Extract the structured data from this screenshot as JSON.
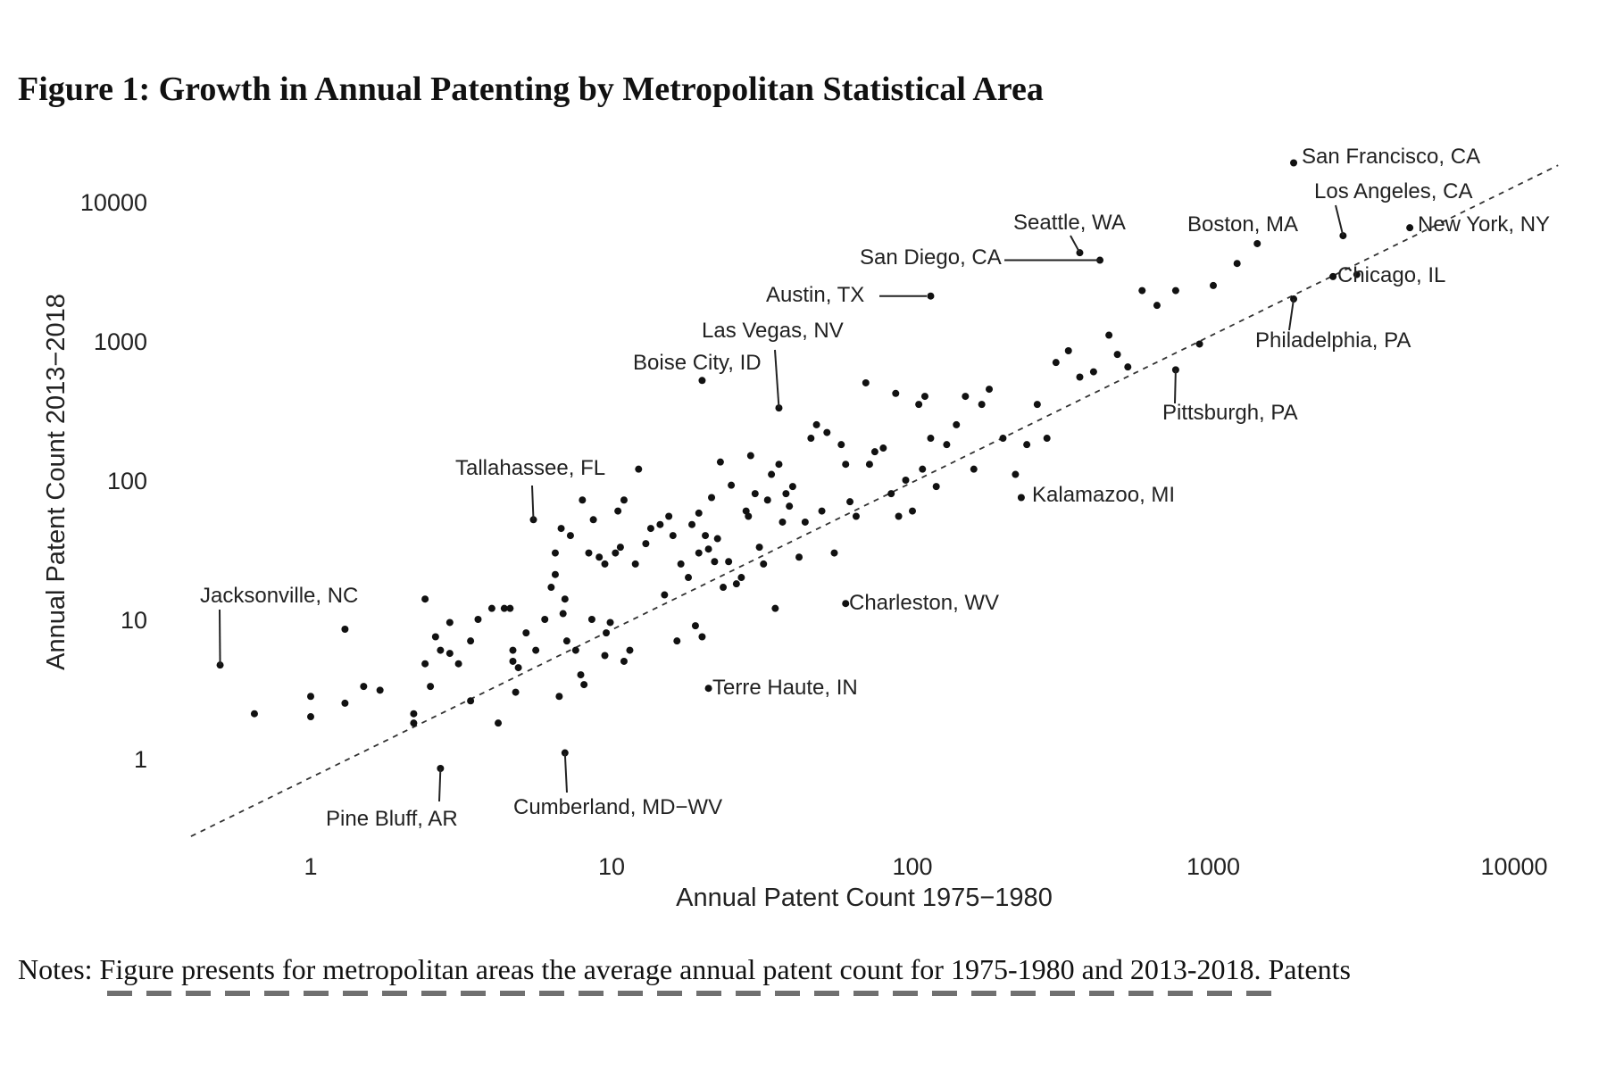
{
  "figure": {
    "title": "Figure 1: Growth in Annual Patenting by Metropolitan Statistical Area",
    "notes": "Notes: Figure presents for metropolitan areas the average annual patent count for 1975-1980 and 2013-2018. Patents"
  },
  "chart_data": {
    "type": "scatter",
    "xlabel": "Annual Patent Count 1975−1980",
    "ylabel": "Annual Patent Count 2013−2018",
    "xscale": "log",
    "yscale": "log",
    "xlim": [
      0.4,
      14000
    ],
    "ylim": [
      0.35,
      15000
    ],
    "xticks": [
      1,
      10,
      100,
      1000,
      10000
    ],
    "xtick_labels": [
      "1",
      "10",
      "100",
      "1000",
      "10000"
    ],
    "yticks": [
      1,
      10,
      100,
      1000,
      10000
    ],
    "ytick_labels": [
      "1",
      "10",
      "100",
      "1000",
      "10000"
    ],
    "grid": false,
    "reference_line": "45-degree dashed line",
    "labeled_points": [
      {
        "label": "San Francisco, CA",
        "x": 1850,
        "y": 19000
      },
      {
        "label": "Los Angeles, CA",
        "x": 2700,
        "y": 5700
      },
      {
        "label": "New York, NY",
        "x": 4500,
        "y": 6500
      },
      {
        "label": "Boston, MA",
        "x": 1400,
        "y": 5000
      },
      {
        "label": "Seattle, WA",
        "x": 360,
        "y": 4300
      },
      {
        "label": "San Diego, CA",
        "x": 420,
        "y": 3800
      },
      {
        "label": "Chicago, IL",
        "x": 2500,
        "y": 2900
      },
      {
        "label": "Austin, TX",
        "x": 115,
        "y": 2100
      },
      {
        "label": "Philadelphia, PA",
        "x": 1850,
        "y": 2000
      },
      {
        "label": "Las Vegas, NV",
        "x": 36,
        "y": 330
      },
      {
        "label": "Boise City, ID",
        "x": 20,
        "y": 520
      },
      {
        "label": "Pittsburgh, PA",
        "x": 750,
        "y": 620
      },
      {
        "label": "Tallahassee, FL",
        "x": 5.5,
        "y": 52
      },
      {
        "label": "Kalamazoo, MI",
        "x": 230,
        "y": 75
      },
      {
        "label": "Jacksonville, NC",
        "x": 0.5,
        "y": 4.7
      },
      {
        "label": "Charleston, WV",
        "x": 60,
        "y": 13
      },
      {
        "label": "Terre Haute, IN",
        "x": 21,
        "y": 3.2
      },
      {
        "label": "Pine Bluff, AR",
        "x": 2.7,
        "y": 0.85
      },
      {
        "label": "Cumberland, MD−WV",
        "x": 7,
        "y": 1.1
      }
    ],
    "points": [
      [
        0.65,
        2.1
      ],
      [
        1,
        2.8
      ],
      [
        1,
        2.0
      ],
      [
        1.3,
        2.5
      ],
      [
        1.3,
        8.5
      ],
      [
        1.5,
        3.3
      ],
      [
        1.7,
        3.1
      ],
      [
        2.2,
        2.1
      ],
      [
        2.2,
        1.8
      ],
      [
        2.4,
        14
      ],
      [
        2.4,
        4.8
      ],
      [
        2.5,
        3.3
      ],
      [
        2.6,
        7.5
      ],
      [
        2.7,
        6
      ],
      [
        2.9,
        9.5
      ],
      [
        2.9,
        5.7
      ],
      [
        3.1,
        4.8
      ],
      [
        3.4,
        7
      ],
      [
        3.6,
        10
      ],
      [
        3.4,
        2.6
      ],
      [
        4,
        12
      ],
      [
        4.2,
        1.8
      ],
      [
        4.4,
        12
      ],
      [
        4.6,
        12
      ],
      [
        4.7,
        6
      ],
      [
        4.7,
        5
      ],
      [
        4.8,
        3
      ],
      [
        4.9,
        4.5
      ],
      [
        5.2,
        8
      ],
      [
        5.6,
        6
      ],
      [
        6,
        10
      ],
      [
        6.3,
        17
      ],
      [
        6.5,
        21
      ],
      [
        6.5,
        30
      ],
      [
        6.8,
        45
      ],
      [
        6.7,
        2.8
      ],
      [
        6.9,
        11
      ],
      [
        7,
        14
      ],
      [
        7.1,
        7
      ],
      [
        7.3,
        40
      ],
      [
        7.6,
        6
      ],
      [
        7.9,
        4
      ],
      [
        8,
        72
      ],
      [
        8.1,
        3.4
      ],
      [
        8.4,
        30
      ],
      [
        8.6,
        10
      ],
      [
        8.7,
        52
      ],
      [
        9.1,
        28
      ],
      [
        9.5,
        25
      ],
      [
        9.6,
        8
      ],
      [
        9.5,
        5.5
      ],
      [
        9.9,
        9.5
      ],
      [
        10.3,
        30
      ],
      [
        10.5,
        60
      ],
      [
        10.7,
        33
      ],
      [
        11,
        5
      ],
      [
        11,
        72
      ],
      [
        11.5,
        6
      ],
      [
        12,
        25
      ],
      [
        12.3,
        120
      ],
      [
        13,
        35
      ],
      [
        13.5,
        45
      ],
      [
        14.5,
        48
      ],
      [
        15,
        15
      ],
      [
        15.5,
        55
      ],
      [
        16,
        40
      ],
      [
        16.5,
        7
      ],
      [
        17,
        25
      ],
      [
        18,
        20
      ],
      [
        18.5,
        48
      ],
      [
        19,
        9
      ],
      [
        19.5,
        30
      ],
      [
        19.5,
        58
      ],
      [
        20,
        7.5
      ],
      [
        20.5,
        40
      ],
      [
        21,
        32
      ],
      [
        21.5,
        75
      ],
      [
        22,
        26
      ],
      [
        22.5,
        38
      ],
      [
        23,
        135
      ],
      [
        23.5,
        17
      ],
      [
        24.5,
        26
      ],
      [
        25,
        92
      ],
      [
        26,
        18
      ],
      [
        27,
        20
      ],
      [
        28,
        60
      ],
      [
        28.5,
        55
      ],
      [
        29,
        150
      ],
      [
        30,
        80
      ],
      [
        31,
        33
      ],
      [
        32,
        25
      ],
      [
        33,
        72
      ],
      [
        34,
        110
      ],
      [
        35,
        12
      ],
      [
        36,
        130
      ],
      [
        37,
        50
      ],
      [
        38,
        80
      ],
      [
        39,
        65
      ],
      [
        40,
        90
      ],
      [
        42,
        28
      ],
      [
        44,
        50
      ],
      [
        46,
        200
      ],
      [
        48,
        250
      ],
      [
        50,
        60
      ],
      [
        52,
        220
      ],
      [
        55,
        30
      ],
      [
        58,
        180
      ],
      [
        60,
        130
      ],
      [
        62,
        70
      ],
      [
        65,
        55
      ],
      [
        70,
        500
      ],
      [
        72,
        130
      ],
      [
        75,
        160
      ],
      [
        80,
        170
      ],
      [
        85,
        80
      ],
      [
        88,
        420
      ],
      [
        90,
        55
      ],
      [
        95,
        100
      ],
      [
        100,
        60
      ],
      [
        105,
        350
      ],
      [
        108,
        120
      ],
      [
        110,
        400
      ],
      [
        115,
        200
      ],
      [
        120,
        90
      ],
      [
        130,
        180
      ],
      [
        140,
        250
      ],
      [
        150,
        400
      ],
      [
        160,
        120
      ],
      [
        170,
        350
      ],
      [
        180,
        450
      ],
      [
        200,
        200
      ],
      [
        220,
        110
      ],
      [
        240,
        180
      ],
      [
        260,
        350
      ],
      [
        280,
        200
      ],
      [
        300,
        700
      ],
      [
        330,
        850
      ],
      [
        360,
        550
      ],
      [
        400,
        600
      ],
      [
        450,
        1100
      ],
      [
        480,
        800
      ],
      [
        520,
        650
      ],
      [
        580,
        2300
      ],
      [
        650,
        1800
      ],
      [
        750,
        2300
      ],
      [
        900,
        950
      ],
      [
        1000,
        2500
      ],
      [
        1200,
        3600
      ],
      [
        3000,
        3000
      ]
    ]
  }
}
